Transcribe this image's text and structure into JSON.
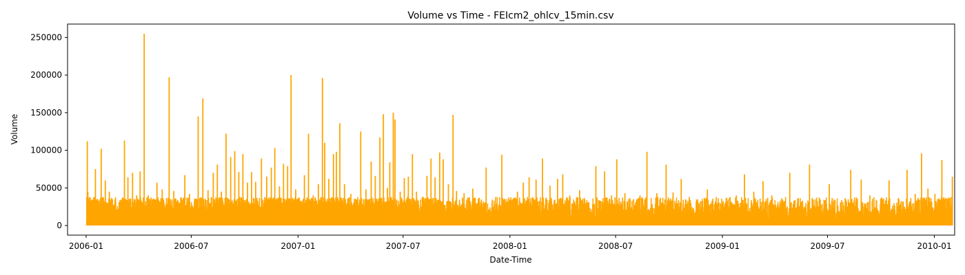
{
  "chart_data": {
    "type": "line",
    "title": "Volume vs Time - FEIcm2_ohlcv_15min.csv",
    "xlabel": "Date-Time",
    "ylabel": "Volume",
    "x_range": [
      "2005-11-30",
      "2010-02-05"
    ],
    "ylim": [
      -12750,
      267750
    ],
    "x_ticks": [
      {
        "date": "2006-01-01",
        "label": "2006-01"
      },
      {
        "date": "2006-07-01",
        "label": "2006-07"
      },
      {
        "date": "2007-01-01",
        "label": "2007-01"
      },
      {
        "date": "2007-07-01",
        "label": "2007-07"
      },
      {
        "date": "2008-01-01",
        "label": "2008-01"
      },
      {
        "date": "2008-07-01",
        "label": "2008-07"
      },
      {
        "date": "2009-01-01",
        "label": "2009-01"
      },
      {
        "date": "2009-07-01",
        "label": "2009-07"
      },
      {
        "date": "2010-01-01",
        "label": "2010-01"
      }
    ],
    "y_ticks": [
      {
        "value": 0,
        "label": "0"
      },
      {
        "value": 50000,
        "label": "50000"
      },
      {
        "value": 100000,
        "label": "100000"
      },
      {
        "value": 150000,
        "label": "150000"
      },
      {
        "value": 200000,
        "label": "200000"
      },
      {
        "value": 250000,
        "label": "250000"
      }
    ],
    "grid": false,
    "series": [
      {
        "color": "#ffa500",
        "points": [
          [
            "2006-01-02",
            8000
          ],
          [
            "2006-01-03",
            112000
          ],
          [
            "2006-01-04",
            45000
          ],
          [
            "2006-01-10",
            30000
          ],
          [
            "2006-01-17",
            75000
          ],
          [
            "2006-01-27",
            102000
          ],
          [
            "2006-02-03",
            60000
          ],
          [
            "2006-02-10",
            45000
          ],
          [
            "2006-02-20",
            30000
          ],
          [
            "2006-03-01",
            28000
          ],
          [
            "2006-03-08",
            113000
          ],
          [
            "2006-03-14",
            64000
          ],
          [
            "2006-03-22",
            70000
          ],
          [
            "2006-03-29",
            40000
          ],
          [
            "2006-04-04",
            72000
          ],
          [
            "2006-04-11",
            255000
          ],
          [
            "2006-04-18",
            40000
          ],
          [
            "2006-04-25",
            35000
          ],
          [
            "2006-05-03",
            57000
          ],
          [
            "2006-05-12",
            48000
          ],
          [
            "2006-05-24",
            197000
          ],
          [
            "2006-06-01",
            46000
          ],
          [
            "2006-06-12",
            30000
          ],
          [
            "2006-06-20",
            67000
          ],
          [
            "2006-06-28",
            42000
          ],
          [
            "2006-07-07",
            35000
          ],
          [
            "2006-07-13",
            145000
          ],
          [
            "2006-07-21",
            169000
          ],
          [
            "2006-07-30",
            47000
          ],
          [
            "2006-08-08",
            70000
          ],
          [
            "2006-08-15",
            81000
          ],
          [
            "2006-08-22",
            45000
          ],
          [
            "2006-08-30",
            122000
          ],
          [
            "2006-09-07",
            91000
          ],
          [
            "2006-09-14",
            99000
          ],
          [
            "2006-09-21",
            71000
          ],
          [
            "2006-09-28",
            95000
          ],
          [
            "2006-10-06",
            57000
          ],
          [
            "2006-10-13",
            71000
          ],
          [
            "2006-10-20",
            58000
          ],
          [
            "2006-10-30",
            89000
          ],
          [
            "2006-11-08",
            65000
          ],
          [
            "2006-11-16",
            77000
          ],
          [
            "2006-11-22",
            103000
          ],
          [
            "2006-11-30",
            52000
          ],
          [
            "2006-12-07",
            82000
          ],
          [
            "2006-12-14",
            79000
          ],
          [
            "2006-12-20",
            200000
          ],
          [
            "2006-12-28",
            48000
          ],
          [
            "2007-01-04",
            18000
          ],
          [
            "2007-01-12",
            67000
          ],
          [
            "2007-01-19",
            122000
          ],
          [
            "2007-01-27",
            40000
          ],
          [
            "2007-02-05",
            55000
          ],
          [
            "2007-02-12",
            196000
          ],
          [
            "2007-02-16",
            110000
          ],
          [
            "2007-02-23",
            62000
          ],
          [
            "2007-03-03",
            95000
          ],
          [
            "2007-03-08",
            98000
          ],
          [
            "2007-03-14",
            136000
          ],
          [
            "2007-03-22",
            55000
          ],
          [
            "2007-04-02",
            42000
          ],
          [
            "2007-04-12",
            30000
          ],
          [
            "2007-04-19",
            125000
          ],
          [
            "2007-04-28",
            48000
          ],
          [
            "2007-05-07",
            85000
          ],
          [
            "2007-05-14",
            66000
          ],
          [
            "2007-05-22",
            117000
          ],
          [
            "2007-05-28",
            148000
          ],
          [
            "2007-06-04",
            50000
          ],
          [
            "2007-06-08",
            84000
          ],
          [
            "2007-06-14",
            150000
          ],
          [
            "2007-06-17",
            141000
          ],
          [
            "2007-06-26",
            45000
          ],
          [
            "2007-07-03",
            63000
          ],
          [
            "2007-07-10",
            65000
          ],
          [
            "2007-07-17",
            95000
          ],
          [
            "2007-07-24",
            45000
          ],
          [
            "2007-08-03",
            38000
          ],
          [
            "2007-08-11",
            66000
          ],
          [
            "2007-08-18",
            89000
          ],
          [
            "2007-08-25",
            64000
          ],
          [
            "2007-09-02",
            97000
          ],
          [
            "2007-09-08",
            88000
          ],
          [
            "2007-09-17",
            55000
          ],
          [
            "2007-09-25",
            147000
          ],
          [
            "2007-10-01",
            46000
          ],
          [
            "2007-10-14",
            43000
          ],
          [
            "2007-10-29",
            49000
          ],
          [
            "2007-11-09",
            37000
          ],
          [
            "2007-11-21",
            77000
          ],
          [
            "2007-12-05",
            28000
          ],
          [
            "2007-12-18",
            94000
          ],
          [
            "2007-12-31",
            10000
          ],
          [
            "2008-01-07",
            30000
          ],
          [
            "2008-01-14",
            45000
          ],
          [
            "2008-01-24",
            57000
          ],
          [
            "2008-02-03",
            64000
          ],
          [
            "2008-02-15",
            61000
          ],
          [
            "2008-02-26",
            89000
          ],
          [
            "2008-03-10",
            53000
          ],
          [
            "2008-03-23",
            62000
          ],
          [
            "2008-04-01",
            68000
          ],
          [
            "2008-04-13",
            40000
          ],
          [
            "2008-04-30",
            47000
          ],
          [
            "2008-05-14",
            30000
          ],
          [
            "2008-05-28",
            79000
          ],
          [
            "2008-06-12",
            72000
          ],
          [
            "2008-06-24",
            40000
          ],
          [
            "2008-07-03",
            88000
          ],
          [
            "2008-07-17",
            43000
          ],
          [
            "2008-08-01",
            35000
          ],
          [
            "2008-08-12",
            40000
          ],
          [
            "2008-08-24",
            98000
          ],
          [
            "2008-09-10",
            43000
          ],
          [
            "2008-09-26",
            81000
          ],
          [
            "2008-10-08",
            44000
          ],
          [
            "2008-10-22",
            62000
          ],
          [
            "2008-11-05",
            38000
          ],
          [
            "2008-11-20",
            25000
          ],
          [
            "2008-12-06",
            48000
          ],
          [
            "2008-12-20",
            32000
          ],
          [
            "2009-01-01",
            5000
          ],
          [
            "2009-01-12",
            22000
          ],
          [
            "2009-01-25",
            40000
          ],
          [
            "2009-02-08",
            68000
          ],
          [
            "2009-02-24",
            45000
          ],
          [
            "2009-03-12",
            59000
          ],
          [
            "2009-03-27",
            40000
          ],
          [
            "2009-04-10",
            30000
          ],
          [
            "2009-04-27",
            70000
          ],
          [
            "2009-05-15",
            28000
          ],
          [
            "2009-05-31",
            81000
          ],
          [
            "2009-06-18",
            35000
          ],
          [
            "2009-07-04",
            55000
          ],
          [
            "2009-07-24",
            30000
          ],
          [
            "2009-08-10",
            74000
          ],
          [
            "2009-08-28",
            61000
          ],
          [
            "2009-09-12",
            40000
          ],
          [
            "2009-09-30",
            28000
          ],
          [
            "2009-10-15",
            60000
          ],
          [
            "2009-11-01",
            35000
          ],
          [
            "2009-11-15",
            74000
          ],
          [
            "2009-11-29",
            42000
          ],
          [
            "2009-12-10",
            96000
          ],
          [
            "2009-12-21",
            49000
          ],
          [
            "2010-01-02",
            42000
          ],
          [
            "2010-01-14",
            87000
          ],
          [
            "2010-01-24",
            30000
          ],
          [
            "2010-02-01",
            65000
          ]
        ]
      }
    ]
  }
}
